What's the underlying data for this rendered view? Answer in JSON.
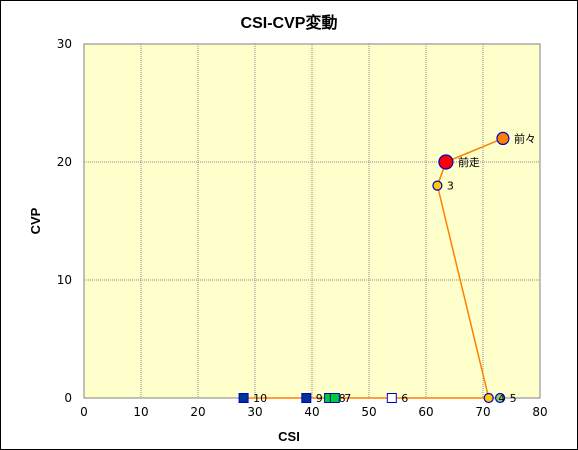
{
  "chart_data": {
    "type": "scatter",
    "title": "CSI-CVP変動",
    "xlabel": "CSI",
    "ylabel": "CVP",
    "xlim": [
      0,
      80
    ],
    "ylim": [
      0,
      30
    ],
    "x_ticks": [
      "0",
      "10",
      "20",
      "30",
      "40",
      "50",
      "60",
      "70",
      "80"
    ],
    "y_ticks": [
      "0",
      "10",
      "20",
      "30"
    ],
    "grid": "dotted",
    "background_color": "#FFFFCC",
    "line_color": "#FF8000",
    "path": [
      {
        "label": "前々",
        "x": 73.5,
        "y": 22
      },
      {
        "label": "前走",
        "x": 63.5,
        "y": 20
      },
      {
        "label": "3",
        "x": 62,
        "y": 18
      },
      {
        "label": "",
        "x": 71,
        "y": 0
      },
      {
        "label": "",
        "x": 28,
        "y": 0
      }
    ],
    "points": [
      {
        "label": "前々",
        "x": 73.5,
        "y": 22,
        "marker": "circle",
        "fill": "#FF8000",
        "stroke": "#0000CC",
        "size": "medium"
      },
      {
        "label": "前走",
        "x": 63.5,
        "y": 20,
        "marker": "circle",
        "fill": "#FF0000",
        "stroke": "#0000CC",
        "size": "large"
      },
      {
        "label": "3",
        "x": 62,
        "y": 18,
        "marker": "circle",
        "fill": "#FFCC00",
        "stroke": "#0000CC",
        "size": "small"
      },
      {
        "label": "4",
        "x": 71,
        "y": 0,
        "marker": "circle",
        "fill": "#FFCC00",
        "stroke": "#0000CC",
        "size": "small"
      },
      {
        "label": "5",
        "x": 73,
        "y": 0,
        "marker": "circle",
        "fill": "#99CC66",
        "stroke": "#0000CC",
        "size": "small"
      },
      {
        "label": "6",
        "x": 54,
        "y": 0,
        "marker": "square",
        "fill": "#FFFFFF",
        "stroke": "#0000CC",
        "size": "small"
      },
      {
        "label": "7",
        "x": 44,
        "y": 0,
        "marker": "square",
        "fill": "#00CC33",
        "stroke": "#0000CC",
        "size": "small"
      },
      {
        "label": "8",
        "x": 43,
        "y": 0,
        "marker": "square",
        "fill": "#00CC33",
        "stroke": "#0000CC",
        "size": "small"
      },
      {
        "label": "9",
        "x": 39,
        "y": 0,
        "marker": "square",
        "fill": "#003399",
        "stroke": "#0000CC",
        "size": "small"
      },
      {
        "label": "10",
        "x": 28,
        "y": 0,
        "marker": "square",
        "fill": "#003399",
        "stroke": "#0000CC",
        "size": "small"
      }
    ]
  }
}
